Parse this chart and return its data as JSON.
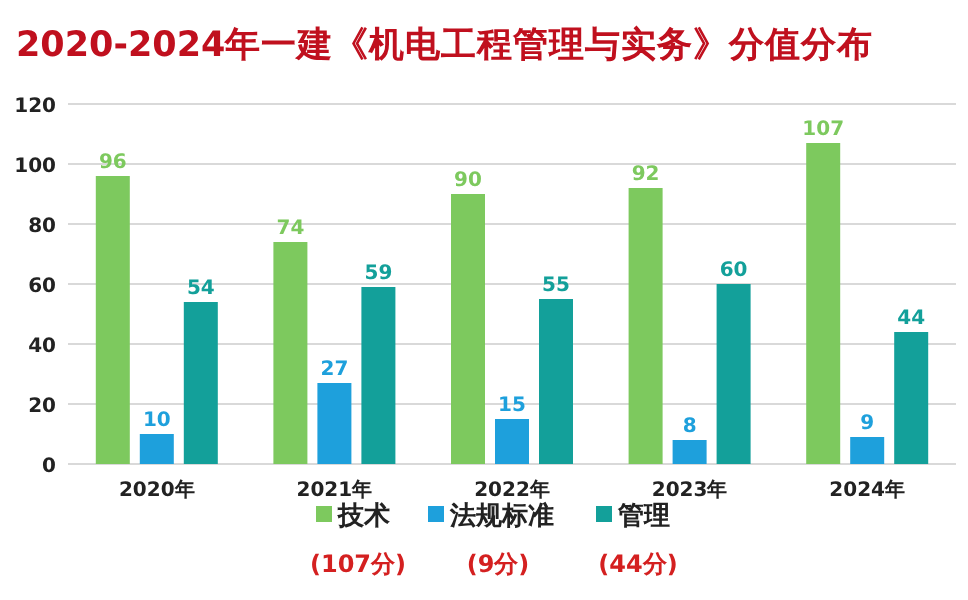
{
  "chart_data": {
    "type": "bar",
    "title": "2020-2024年一建《机电工程管理与实务》分值分布",
    "categories": [
      "2020年",
      "2021年",
      "2022年",
      "2023年",
      "2024年"
    ],
    "series": [
      {
        "name": "技术",
        "color": "#7dc95e",
        "values": [
          96,
          74,
          90,
          92,
          107
        ]
      },
      {
        "name": "法规标准",
        "color": "#1ea0dc",
        "values": [
          10,
          27,
          15,
          8,
          9
        ]
      },
      {
        "name": "管理",
        "color": "#13a09a",
        "values": [
          54,
          59,
          55,
          60,
          44
        ]
      }
    ],
    "ylim": [
      0,
      120
    ],
    "yticks": [
      0,
      20,
      40,
      60,
      80,
      100,
      120
    ],
    "grid": "y",
    "legend": "bottom",
    "data_labels": true,
    "annotations": [
      "(107分)",
      "(9分)",
      "(44分)"
    ]
  }
}
